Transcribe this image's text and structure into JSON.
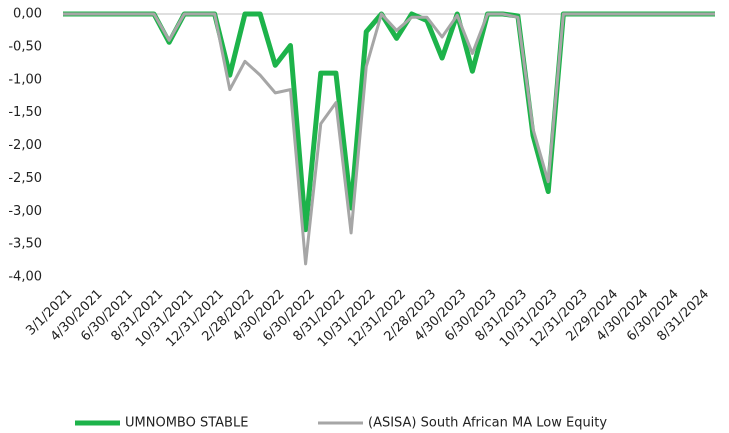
{
  "chart_data": {
    "type": "line",
    "categories": [
      "3/1/2021",
      null,
      "4/30/2021",
      null,
      "6/30/2021",
      null,
      "8/31/2021",
      null,
      "10/31/2021",
      null,
      "12/31/2021",
      null,
      "2/28/2022",
      null,
      "4/30/2022",
      null,
      "6/30/2022",
      null,
      "8/31/2022",
      null,
      "10/31/2022",
      null,
      "12/31/2022",
      null,
      "2/28/2023",
      null,
      "4/30/2023",
      null,
      "6/30/2023",
      null,
      "8/31/2023",
      null,
      "10/31/2023",
      null,
      "12/31/2023",
      null,
      "2/29/2024",
      null,
      "4/30/2024",
      null,
      "6/30/2024",
      null,
      "8/31/2024",
      null
    ],
    "series": [
      {
        "name": "UMNOMBO STABLE",
        "color": "#1db34a",
        "values": [
          0,
          0,
          0,
          0,
          0,
          0,
          0,
          -0.43,
          0,
          0,
          0,
          -0.93,
          0,
          0,
          -0.78,
          -0.48,
          -3.28,
          -0.9,
          -0.9,
          -2.95,
          -0.27,
          0,
          -0.37,
          0,
          -0.1,
          -0.67,
          0,
          -0.87,
          0,
          0,
          -0.03,
          -1.85,
          -2.7,
          0,
          0,
          0,
          0,
          0,
          0,
          0,
          0,
          0,
          0,
          0
        ]
      },
      {
        "name": "(ASISA) South African MA Low Equity",
        "color": "#a6a6a6",
        "values": [
          0,
          0,
          0,
          0,
          0,
          0,
          0,
          -0.4,
          0,
          0,
          0,
          -1.15,
          -0.72,
          -0.93,
          -1.2,
          -1.15,
          -3.8,
          -1.67,
          -1.35,
          -3.33,
          -0.8,
          0,
          -0.25,
          -0.05,
          -0.05,
          -0.35,
          -0.02,
          -0.6,
          0,
          0,
          -0.05,
          -1.75,
          -2.55,
          0,
          0,
          0,
          0,
          0,
          0,
          0,
          0,
          0,
          0,
          0
        ]
      }
    ],
    "ylim": [
      -4,
      0
    ],
    "yticks": [
      {
        "value": 0,
        "label": "0,00"
      },
      {
        "value": -0.5,
        "label": "-0,50"
      },
      {
        "value": -1,
        "label": "-1,00"
      },
      {
        "value": -1.5,
        "label": "-1,50"
      },
      {
        "value": -2,
        "label": "-2,00"
      },
      {
        "value": -2.5,
        "label": "-2,50"
      },
      {
        "value": -3,
        "label": "-3,00"
      },
      {
        "value": -3.5,
        "label": "-3,50"
      },
      {
        "value": -4,
        "label": "-4,00"
      }
    ],
    "grid": false
  }
}
